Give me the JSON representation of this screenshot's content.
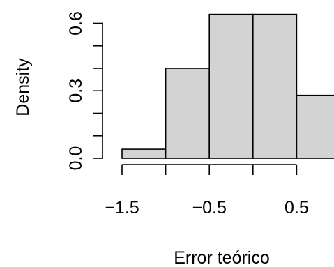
{
  "chart_data": {
    "type": "bar",
    "title": "",
    "xlabel": "Error teórico",
    "ylabel": "Density",
    "bins": [
      {
        "x0": -1.5,
        "x1": -1.0,
        "density": 0.04
      },
      {
        "x0": -1.0,
        "x1": -0.5,
        "density": 0.4
      },
      {
        "x0": -0.5,
        "x1": 0.0,
        "density": 0.64
      },
      {
        "x0": 0.0,
        "x1": 0.5,
        "density": 0.64
      },
      {
        "x0": 0.5,
        "x1": 1.0,
        "density": 0.28
      }
    ],
    "x_ticks": [
      -1.5,
      -1.0,
      -0.5,
      0.0,
      0.5
    ],
    "x_tick_labels": [
      "−1.5",
      "",
      "−0.5",
      "",
      "0.5"
    ],
    "y_ticks": [
      0.0,
      0.1,
      0.2,
      0.3,
      0.4,
      0.5,
      0.6
    ],
    "y_tick_labels": [
      "0.0",
      "",
      "",
      "0.3",
      "",
      "",
      "0.6"
    ],
    "xlim": [
      -1.5,
      1.0
    ],
    "ylim": [
      0,
      0.64
    ],
    "grid": false,
    "colors": {
      "bar_fill": "#d3d3d3",
      "bar_stroke": "#000000",
      "axis": "#000000"
    }
  }
}
